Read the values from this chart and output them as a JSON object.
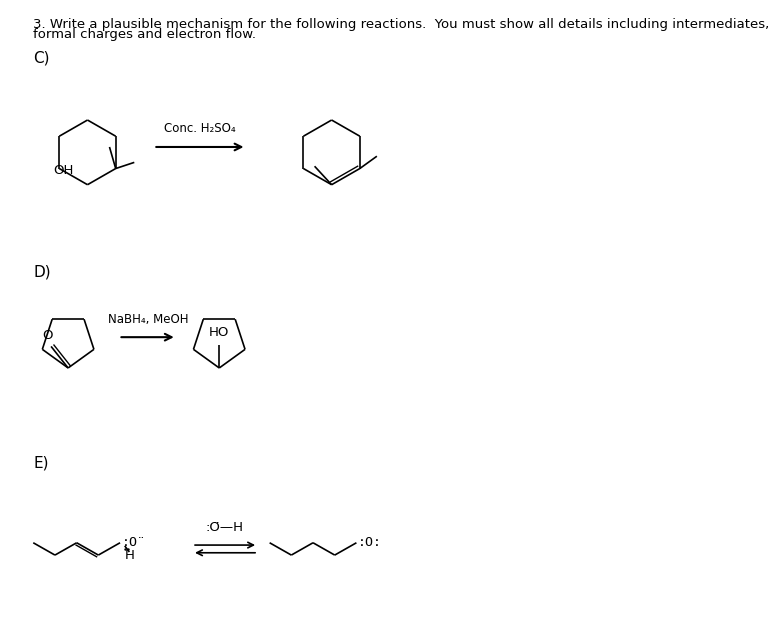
{
  "title_line1": "3. Write a plausible mechanism for the following reactions.  You must show all details including intermediates,",
  "title_line2": "formal charges and electron flow.",
  "section_c": "C)",
  "section_d": "D)",
  "section_e": "E)",
  "reagent_c": "Conc. H₂SO₄",
  "reagent_d": "NaBH₄, MeOH",
  "bg_color": "#ffffff",
  "text_color": "#000000",
  "font_size_title": 9.5,
  "font_size_label": 11,
  "font_size_reagent": 8.5
}
